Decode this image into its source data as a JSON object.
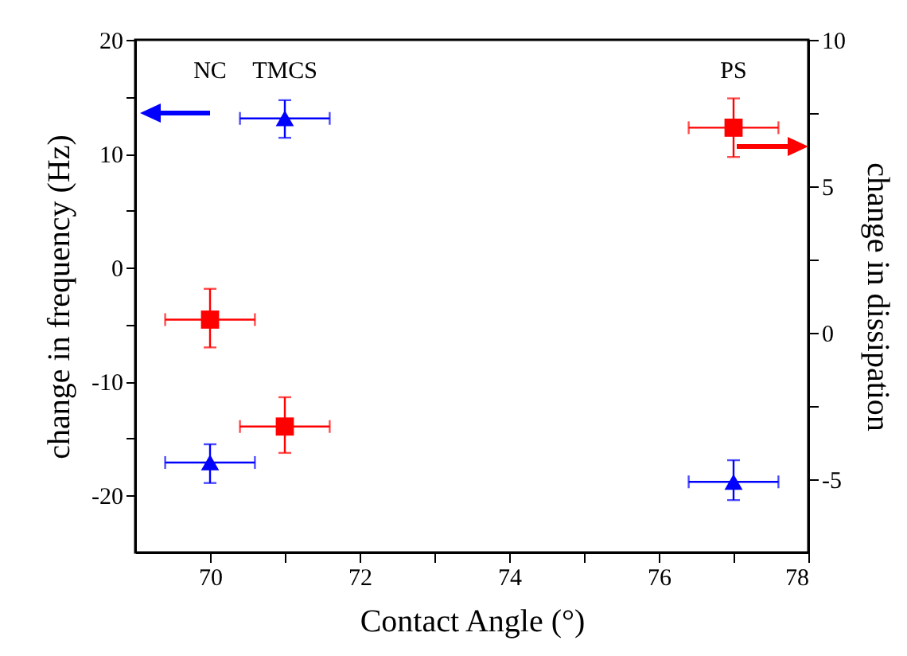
{
  "chart_data": {
    "type": "scatter",
    "xlabel": "Contact Angle (°)",
    "ylabel": "change in frequency (Hz)",
    "y2label": "change in dissipation",
    "annotations": [
      "NC",
      "TMCS",
      "PS"
    ],
    "xlim": [
      69,
      78
    ],
    "xticks": [
      70,
      {
        "value": 71,
        "label": null
      },
      72,
      {
        "value": 73,
        "label": null
      },
      74,
      {
        "value": 75,
        "label": null
      },
      76,
      {
        "value": 77,
        "label": null
      },
      78
    ],
    "ylim": [
      -25,
      20
    ],
    "yticks": [
      -20,
      {
        "value": -15,
        "label": null
      },
      -10,
      {
        "value": -5,
        "label": null
      },
      0,
      {
        "value": 5,
        "label": null
      },
      10,
      {
        "value": 15,
        "label": null
      },
      20
    ],
    "y2lim": [
      -7.5,
      10
    ],
    "y2ticks": [
      -5,
      {
        "value": -2.5,
        "label": null
      },
      0,
      {
        "value": 2.5,
        "label": null
      },
      5,
      {
        "value": 7.5,
        "label": null
      },
      10
    ],
    "series": [
      {
        "color": "#0000ff",
        "marker": "triangle",
        "axis": "y",
        "x": [
          70,
          71,
          77
        ],
        "values": [
          -17.1,
          13.1,
          -18.8
        ],
        "errors": [
          [
            -18.9,
            -15.5
          ],
          [
            11.4,
            14.7
          ],
          [
            -20.4,
            -16.9
          ]
        ],
        "xerrors": [
          0.6,
          0.6,
          0.6
        ]
      },
      {
        "color": "#ff0000",
        "marker": "square",
        "axis": "y2",
        "x": [
          70,
          71,
          77
        ],
        "values": [
          0.45,
          -3.2,
          7.0
        ],
        "errors": [
          [
            -0.5,
            1.5
          ],
          [
            -4.1,
            -2.2
          ],
          [
            6.0,
            8.0
          ]
        ],
        "xerrors": [
          0.6,
          0.6,
          0.6
        ]
      }
    ]
  }
}
